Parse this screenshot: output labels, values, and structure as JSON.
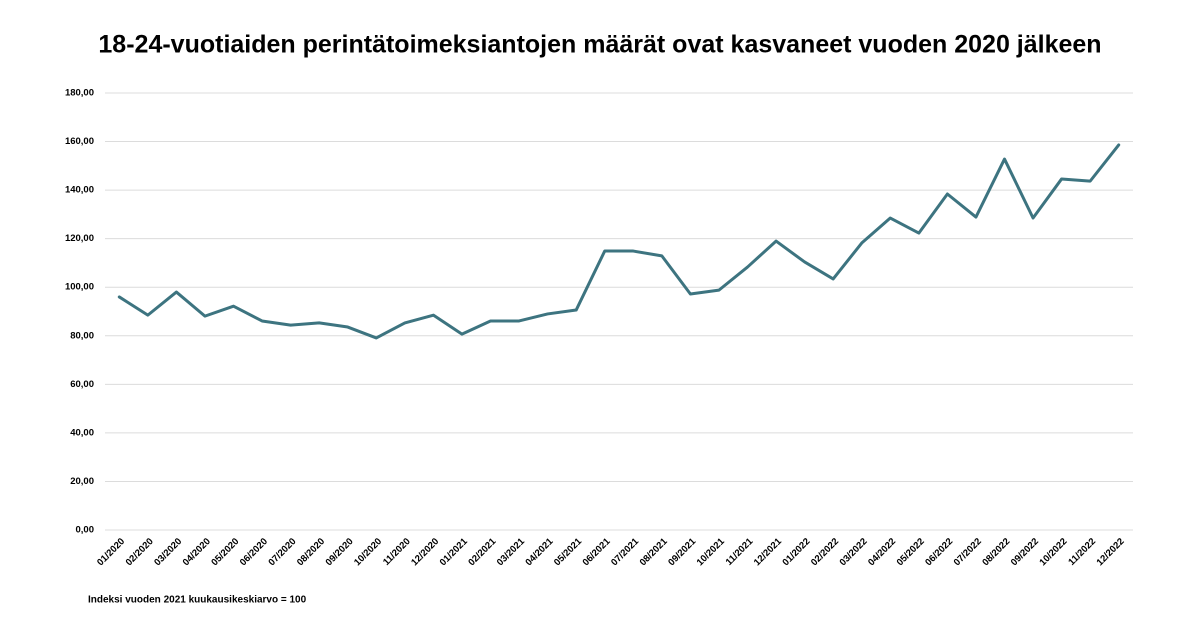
{
  "chart_data": {
    "type": "line",
    "title": "18-24-vuotiaiden perintätoimeksiantojen määrät ovat kasvaneet vuoden 2020 jälkeen",
    "note": "Indeksi vuoden 2021 kuukausikeskiarvo = 100",
    "categories": [
      "01/2020",
      "02/2020",
      "03/2020",
      "04/2020",
      "05/2020",
      "06/2020",
      "07/2020",
      "08/2020",
      "09/2020",
      "10/2020",
      "11/2020",
      "12/2020",
      "01/2021",
      "02/2021",
      "03/2021",
      "04/2021",
      "05/2021",
      "06/2021",
      "07/2021",
      "08/2021",
      "09/2021",
      "10/2021",
      "11/2021",
      "12/2021",
      "01/2022",
      "02/2022",
      "03/2022",
      "04/2022",
      "05/2022",
      "06/2022",
      "07/2022",
      "08/2022",
      "09/2022",
      "10/2022",
      "11/2022",
      "12/2022"
    ],
    "values": [
      96.0,
      88.5,
      98.0,
      88.1,
      92.2,
      86.1,
      84.4,
      85.3,
      83.6,
      79.1,
      85.3,
      88.5,
      80.7,
      86.1,
      86.1,
      89.0,
      90.6,
      114.9,
      114.9,
      112.9,
      97.2,
      98.8,
      108.3,
      119.0,
      110.4,
      103.4,
      118.2,
      128.5,
      122.3,
      138.4,
      128.9,
      152.8,
      128.5,
      144.6,
      143.7,
      158.6
    ],
    "color": "#3d7480",
    "ylim": [
      0,
      180
    ],
    "yticks": [
      {
        "value": 0,
        "label": "0,00"
      },
      {
        "value": 20,
        "label": "20,00"
      },
      {
        "value": 40,
        "label": "40,00"
      },
      {
        "value": 60,
        "label": "60,00"
      },
      {
        "value": 80,
        "label": "80,00"
      },
      {
        "value": 100,
        "label": "100,00"
      },
      {
        "value": 120,
        "label": "120,00"
      },
      {
        "value": 140,
        "label": "140,00"
      },
      {
        "value": 160,
        "label": "160,00"
      },
      {
        "value": 180,
        "label": "180,00"
      }
    ],
    "grid": true
  }
}
